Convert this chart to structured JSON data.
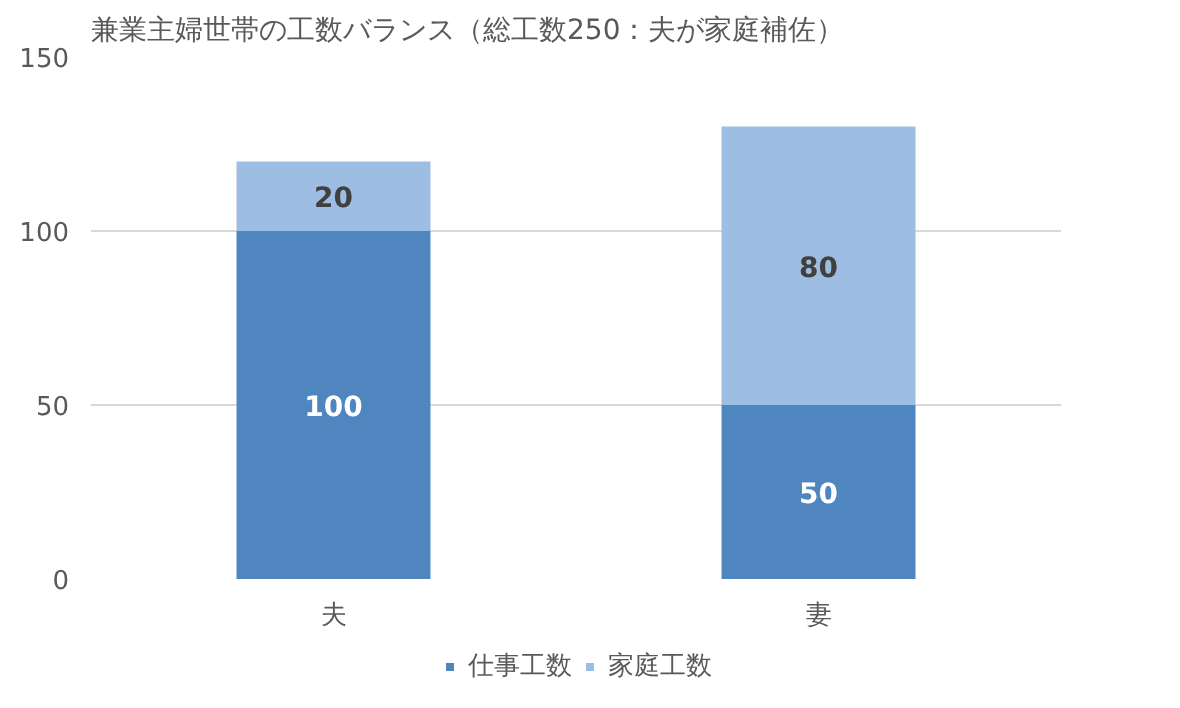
{
  "chart_data": {
    "type": "bar",
    "title": "兼業主婦世帯の工数バランス（総工数250：夫が家庭補佐）",
    "categories": [
      "夫",
      "妻"
    ],
    "stacked": true,
    "data_labels": true,
    "ylim": [
      0,
      150
    ],
    "yticks": [
      0,
      50,
      100,
      150
    ],
    "grid": "y",
    "legend": "bottom",
    "series": [
      {
        "name": "仕事工数",
        "color": "#4f86c0",
        "values": [
          100,
          50
        ]
      },
      {
        "name": "家庭工数",
        "color": "#9dbde2",
        "values": [
          20,
          80
        ]
      }
    ]
  }
}
